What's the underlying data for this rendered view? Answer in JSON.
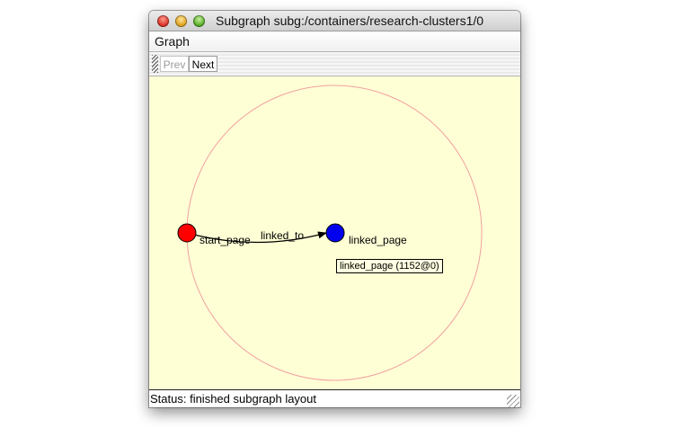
{
  "window": {
    "title": "Subgraph subg:/containers/research-clusters1/0"
  },
  "menu": {
    "items": [
      "Graph"
    ]
  },
  "toolbar": {
    "prev_label": "Prev",
    "next_label": "Next",
    "prev_enabled": false
  },
  "graph": {
    "nodes": [
      {
        "label": "start_page",
        "color": "#ff0000"
      },
      {
        "label": "linked_page",
        "color": "#0000ee"
      }
    ],
    "edge": {
      "label": "linked_to"
    },
    "tooltip": "linked_page (1152@0)",
    "ring_color": "#f0a0a0",
    "background": "#ffffd6"
  },
  "status": {
    "text": "Status: finished subgraph layout"
  }
}
